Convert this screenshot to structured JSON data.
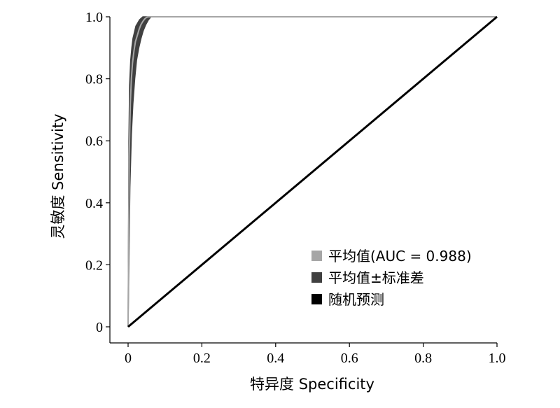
{
  "chart_data": {
    "type": "line",
    "title": "",
    "xlabel": "特异度  Specificity",
    "ylabel": "灵敏度 Sensitivity",
    "xlim": [
      0,
      1
    ],
    "ylim": [
      0,
      1
    ],
    "grid": false,
    "legend_position": "bottom-right",
    "x_ticks": [
      "0",
      "0.2",
      "0.4",
      "0.6",
      "0.8",
      "1.0"
    ],
    "y_ticks": [
      "0",
      "0.2",
      "0.4",
      "0.6",
      "0.8",
      "1.0"
    ],
    "series": [
      {
        "name": "平均值(AUC = 0.988)",
        "color": "#a6a6a6",
        "x": [
          0,
          0.003,
          0.006,
          0.009,
          0.012,
          0.016,
          0.02,
          0.025,
          0.03,
          0.035,
          0.04,
          0.045,
          0.05,
          0.055,
          1.0
        ],
        "y": [
          0,
          0.55,
          0.72,
          0.8,
          0.85,
          0.89,
          0.92,
          0.94,
          0.96,
          0.975,
          0.985,
          0.993,
          0.998,
          1.0,
          1.0
        ]
      },
      {
        "name": "平均值±标准差",
        "color": "#404040",
        "x_upper": [
          0,
          0.002,
          0.004,
          0.007,
          0.01,
          0.013,
          0.017,
          0.021,
          0.026,
          0.031,
          0.036,
          0.04,
          1.0
        ],
        "y_upper": [
          0,
          0.6,
          0.78,
          0.86,
          0.9,
          0.93,
          0.95,
          0.97,
          0.98,
          0.99,
          0.996,
          1.0,
          1.0
        ],
        "x_lower": [
          0,
          0.005,
          0.009,
          0.013,
          0.018,
          0.023,
          0.029,
          0.035,
          0.041,
          0.048,
          0.055,
          0.062,
          1.0
        ],
        "y_lower": [
          0,
          0.45,
          0.62,
          0.72,
          0.8,
          0.86,
          0.9,
          0.93,
          0.955,
          0.975,
          0.99,
          1.0,
          1.0
        ]
      },
      {
        "name": "随机预测",
        "color": "#000000",
        "x": [
          0,
          1
        ],
        "y": [
          0,
          1
        ]
      }
    ]
  }
}
